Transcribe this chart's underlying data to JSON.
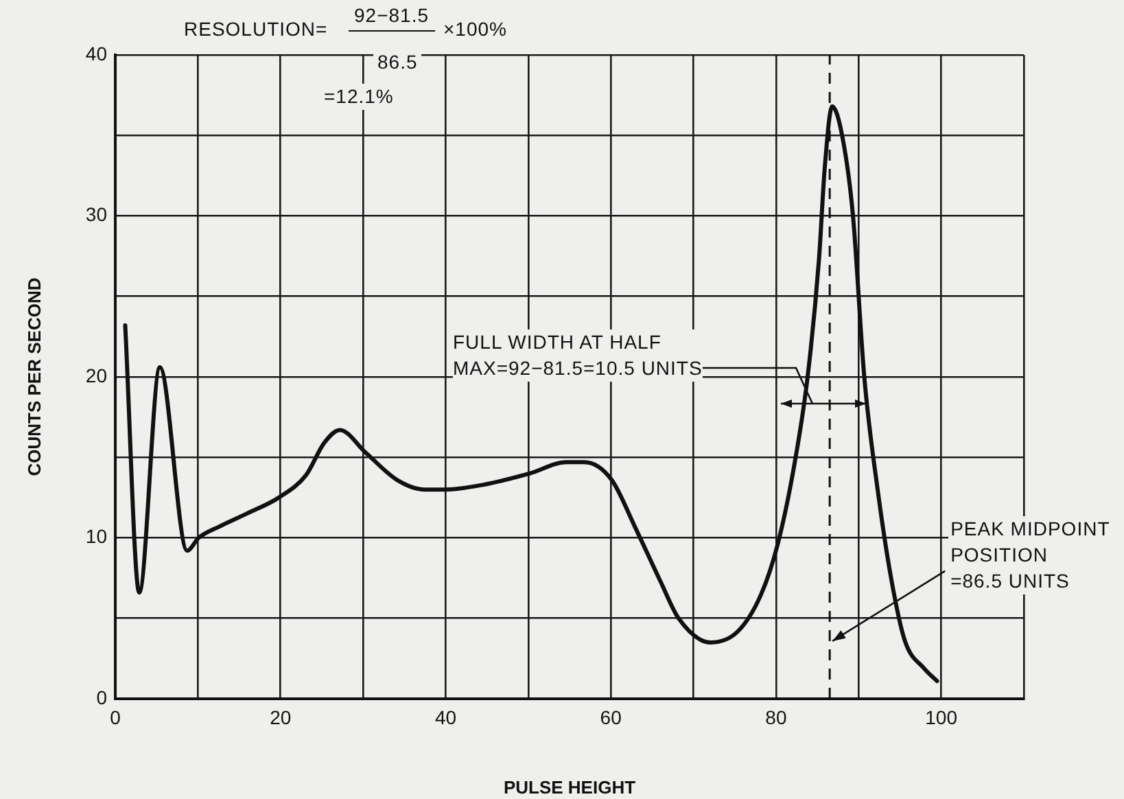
{
  "chart_data": {
    "type": "line",
    "xlabel": "PULSE HEIGHT",
    "ylabel": "COUNTS PER SECOND",
    "series": [
      {
        "color": "#111111",
        "x": [
          1.2,
          2.9,
          5.4,
          8.7,
          10.1,
          12.6,
          15.9,
          19.8,
          23.1,
          25.3,
          27.2,
          30.3,
          34.1,
          37.5,
          40.0,
          44.6,
          50.2,
          54.6,
          56.8,
          60.1,
          62.9,
          66.0,
          68.2,
          72.1,
          75.4,
          78.2,
          80.2,
          82.1,
          83.8,
          85.2,
          85.9,
          86.8,
          88.0,
          89.3,
          90.7,
          92.3,
          94.0,
          95.6,
          97.9,
          99.5
        ],
        "values": [
          23.2,
          6.6,
          20.6,
          9.2,
          10.0,
          10.7,
          11.5,
          12.5,
          13.9,
          15.9,
          16.7,
          15.3,
          13.6,
          13.0,
          13.0,
          13.3,
          14.0,
          14.7,
          14.7,
          13.6,
          10.7,
          7.3,
          5.0,
          3.5,
          4.2,
          6.5,
          9.6,
          14.2,
          19.9,
          27.3,
          33.0,
          36.8,
          35.0,
          30.1,
          19.9,
          13.0,
          7.3,
          3.6,
          1.9,
          1.1
        ]
      }
    ],
    "xlim": [
      0,
      110
    ],
    "xticks": [
      0,
      {
        "value": 10,
        "label": null
      },
      20,
      {
        "value": 30,
        "label": null
      },
      40,
      {
        "value": 50,
        "label": null
      },
      60,
      {
        "value": 70,
        "label": null
      },
      80,
      {
        "value": 90,
        "label": null
      },
      100,
      {
        "value": 110,
        "label": null
      }
    ],
    "ylim": [
      0,
      40
    ],
    "yticks": [
      0,
      {
        "value": 5,
        "label": null
      },
      10,
      {
        "value": 15,
        "label": null
      },
      20,
      {
        "value": 25,
        "label": null
      },
      30,
      {
        "value": 35,
        "label": null
      },
      40
    ],
    "grid": true,
    "marker": "none",
    "line_style": "solid",
    "legend": false,
    "ref_lines": [
      {
        "axis": "x",
        "value": 86.5,
        "line_style": "dashed",
        "color": "#111111"
      }
    ],
    "annotations": [
      "RESOLUTION=",
      "92−81.5",
      "86.5",
      "×100%",
      "=12.1%",
      "FULL WIDTH AT HALF\nMAX=92−81.5=10.5 UNITS",
      {
        "text": "PEAK MIDPOINT\nPOSITION\n=86.5 UNITS",
        "x": 86.5,
        "y": 3.5
      }
    ]
  }
}
